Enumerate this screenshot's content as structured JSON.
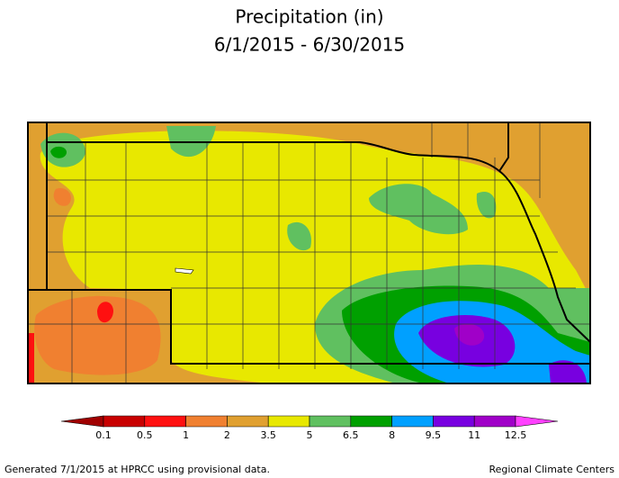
{
  "title": {
    "line1": "Precipitation (in)",
    "line2": "6/1/2015 - 6/30/2015"
  },
  "legend": {
    "colors": [
      "#a00000",
      "#c80000",
      "#ff1010",
      "#f08030",
      "#e0a030",
      "#e8e800",
      "#60c060",
      "#00a000",
      "#00a0ff",
      "#7800e0",
      "#a000c8",
      "#ff40ff"
    ],
    "labels": [
      "0.1",
      "0.5",
      "1",
      "2",
      "3.5",
      "5",
      "6.5",
      "8",
      "9.5",
      "11",
      "12.5"
    ]
  },
  "footer": {
    "left": "Generated 7/1/2015 at HPRCC using provisional data.",
    "right": "Regional Climate Centers"
  }
}
